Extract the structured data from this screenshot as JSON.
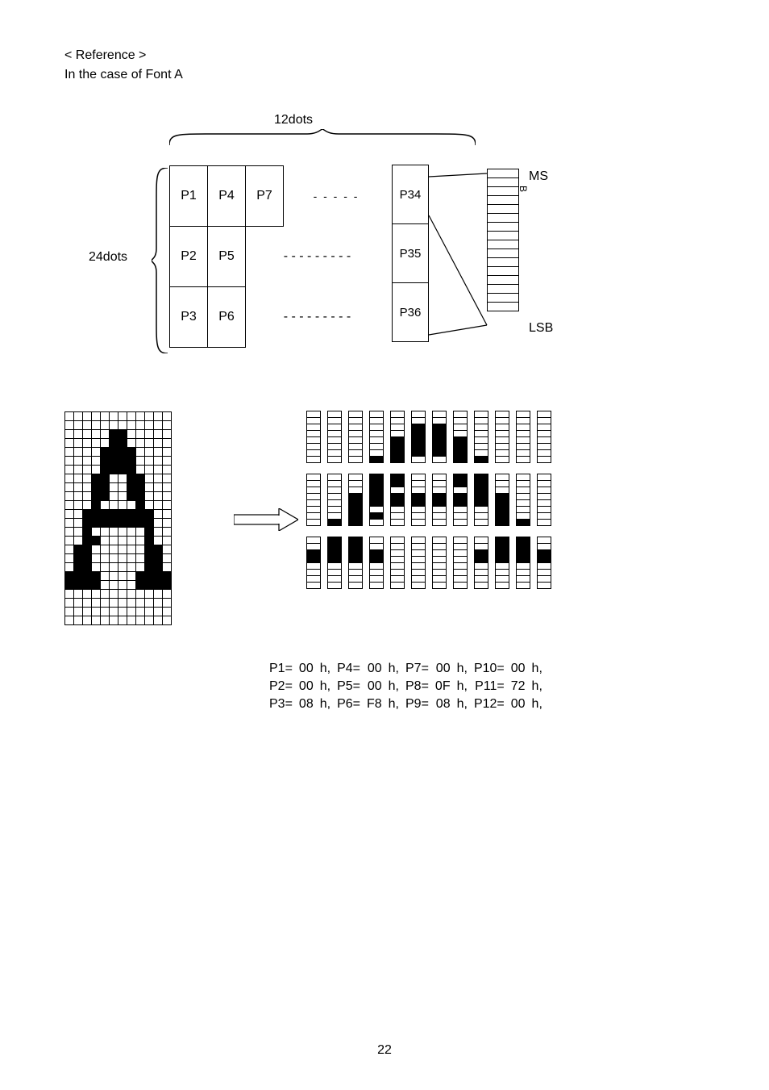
{
  "heading": {
    "line1": "< Reference >",
    "line2": "In the case of Font A"
  },
  "top_diagram": {
    "width_label": "12dots",
    "height_label": "24dots",
    "cells": {
      "col1": [
        "P1",
        "P2",
        "P3"
      ],
      "col2": [
        "P4",
        "P5",
        "P6"
      ],
      "col3": [
        "P7",
        "",
        ""
      ],
      "right": [
        "P34",
        "P35",
        "P36"
      ]
    },
    "msb": "MS",
    "msb_sub": "B",
    "lsb": "LSB",
    "byte_bits": 16
  },
  "glyph": {
    "rows": 24,
    "cols": 12,
    "fill": [
      "000000000000",
      "000000000000",
      "000001100000",
      "000001100000",
      "000011110000",
      "000011110000",
      "000011110000",
      "000110011000",
      "000110011000",
      "000110011000",
      "000100001000",
      "001111111100",
      "001111111100",
      "001000000100",
      "001100000100",
      "011000000110",
      "011000000110",
      "011000000110",
      "111100001111",
      "111100001111",
      "000000000000",
      "000000000000",
      "000000000000",
      "000000000000"
    ]
  },
  "values": {
    "rows": [
      [
        "P1=",
        "00",
        "h,",
        "P4=",
        "00",
        "h,",
        "P7=",
        "00",
        "h,",
        "P10=",
        "00",
        "h,"
      ],
      [
        "P2=",
        "00",
        "h,",
        "P5=",
        "00",
        "h,",
        "P8=",
        "0F",
        "h,",
        "P11=",
        "72",
        "h,"
      ],
      [
        "P3=",
        "08",
        "h,",
        "P6=",
        "F8",
        "h,",
        "P9=",
        "08",
        "h,",
        "P12=",
        "00",
        "h,"
      ]
    ]
  },
  "page_number": "22",
  "colors": {
    "bg": "#ffffff",
    "fg": "#000000"
  }
}
